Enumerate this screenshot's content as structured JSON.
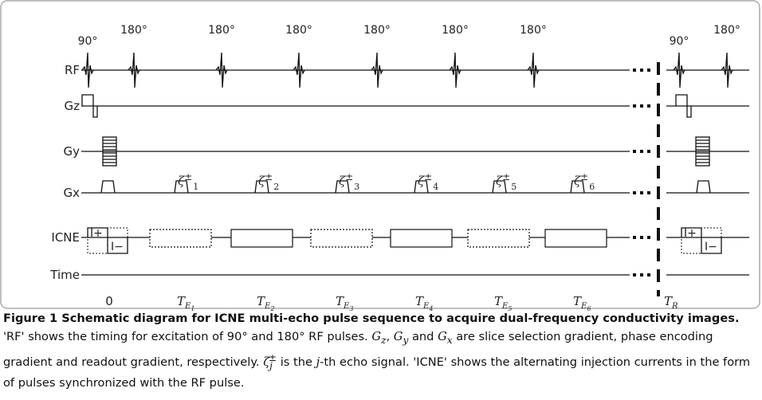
{
  "figure": {
    "rows": [
      "RF",
      "Gz",
      "Gy",
      "Gx",
      "ICNE",
      "Time"
    ],
    "rf_labels": [
      "90°",
      "180°",
      "180°",
      "180°",
      "180°",
      "180°",
      "180°",
      "90°",
      "180°"
    ],
    "echo_labels": [
      {
        "symbol": "ζ",
        "sup": "±",
        "sub": "1"
      },
      {
        "symbol": "ζ",
        "sup": "±",
        "sub": "2"
      },
      {
        "symbol": "ζ",
        "sup": "±",
        "sub": "3"
      },
      {
        "symbol": "ζ",
        "sup": "±",
        "sub": "4"
      },
      {
        "symbol": "ζ",
        "sup": "±",
        "sub": "5"
      },
      {
        "symbol": "ζ",
        "sup": "±",
        "sub": "6"
      }
    ],
    "current_labels": [
      "I+",
      "I−",
      "I+",
      "I−"
    ],
    "time_zero": "0",
    "time_labels": [
      {
        "main": "T",
        "sub": "E",
        "sub2": "1"
      },
      {
        "main": "T",
        "sub": "E",
        "sub2": "2"
      },
      {
        "main": "T",
        "sub": "E",
        "sub2": "3"
      },
      {
        "main": "T",
        "sub": "E",
        "sub2": "4"
      },
      {
        "main": "T",
        "sub": "E",
        "sub2": "5"
      },
      {
        "main": "T",
        "sub": "E",
        "sub2": "6"
      }
    ],
    "repetition": {
      "main": "T",
      "sub": "R"
    }
  },
  "caption": {
    "title": "Figure 1 Schematic diagram for ICNE multi-echo pulse sequence to acquire dual-frequency conductivity images.",
    "text1": "'RF' shows the timing for excitation of 90° and 180° RF pulses.",
    "g": "G",
    "gz": "z",
    "gy": "y",
    "gx": "x",
    "sep1": ",",
    "and": "and",
    "text2": "are slice selection gradient, phase encoding gradient and readout gradient, respectively.",
    "zeta": "ζ",
    "zeta_sub": "j",
    "zeta_sup": "±",
    "text3": "is the",
    "j": "j",
    "text4": "-th echo signal. 'ICNE' shows the alternating injection currents in the form of pulses synchronized with the RF pulse."
  }
}
